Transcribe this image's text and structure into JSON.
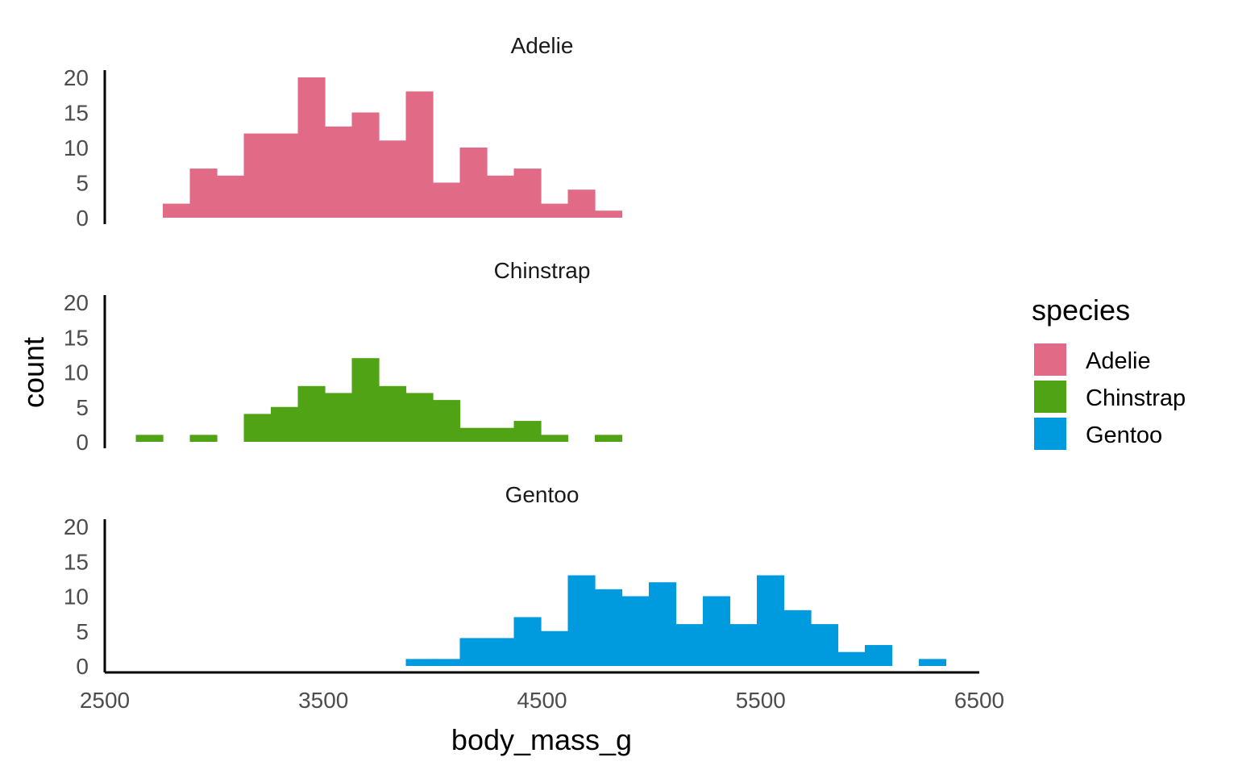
{
  "chart_data": {
    "type": "bar",
    "subtype": "faceted-histogram",
    "xlabel": "body_mass_g",
    "ylabel": "count",
    "xlim": [
      2500,
      6500
    ],
    "ylim": [
      0,
      20
    ],
    "x_ticks": [
      2500,
      3500,
      4500,
      5500,
      6500
    ],
    "y_ticks": [
      0,
      5,
      10,
      15,
      20
    ],
    "grid": false,
    "bin_width": 123.5,
    "bin_start": 2642,
    "legend": {
      "title": "species",
      "position": "right",
      "entries": [
        {
          "label": "Adelie",
          "color": "#E16A86"
        },
        {
          "label": "Chinstrap",
          "color": "#50A315"
        },
        {
          "label": "Gentoo",
          "color": "#009ADE"
        }
      ]
    },
    "facets": [
      {
        "name": "Adelie",
        "color": "#E16A86",
        "counts": [
          0,
          2,
          7,
          6,
          12,
          12,
          20,
          13,
          15,
          11,
          18,
          5,
          10,
          6,
          7,
          2,
          4,
          1,
          0,
          0,
          0,
          0,
          0,
          0,
          0,
          0,
          0,
          0,
          0,
          0
        ]
      },
      {
        "name": "Chinstrap",
        "color": "#50A315",
        "counts": [
          1,
          0,
          1,
          0,
          4,
          5,
          8,
          7,
          12,
          8,
          7,
          6,
          2,
          2,
          3,
          1,
          0,
          1,
          0,
          0,
          0,
          0,
          0,
          0,
          0,
          0,
          0,
          0,
          0,
          0
        ]
      },
      {
        "name": "Gentoo",
        "color": "#009ADE",
        "counts": [
          0,
          0,
          0,
          0,
          0,
          0,
          0,
          0,
          0,
          0,
          1,
          1,
          4,
          4,
          7,
          5,
          13,
          11,
          10,
          12,
          6,
          10,
          6,
          13,
          8,
          6,
          2,
          3,
          0,
          1
        ]
      }
    ]
  }
}
